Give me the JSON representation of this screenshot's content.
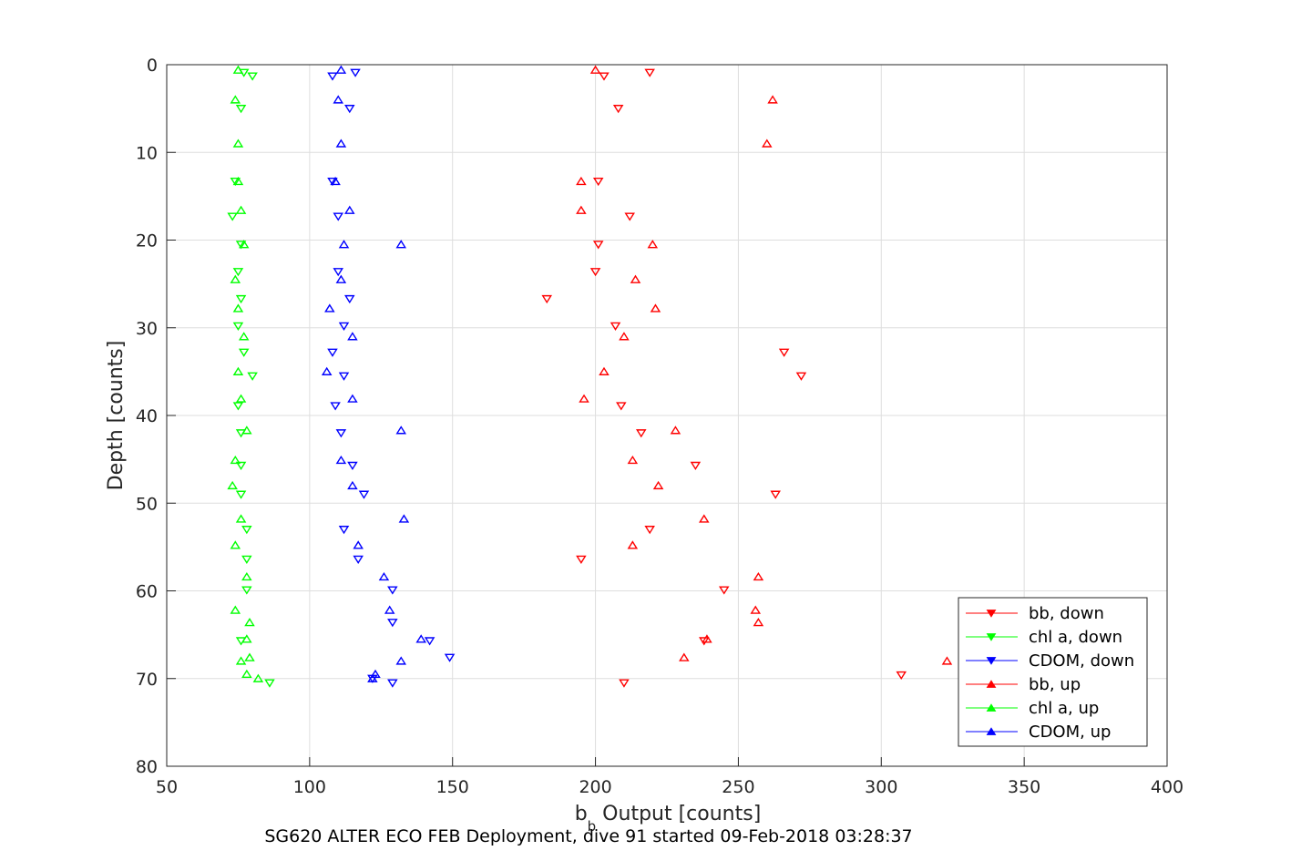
{
  "chart_data": {
    "type": "scatter",
    "caption": "SG620 ALTER ECO FEB Deployment, dive 91 started 09-Feb-2018 03:28:37",
    "xlabel_main": "b",
    "xlabel_sub": "b",
    "xlabel_rest": " Output [counts]",
    "ylabel": "Depth [counts]",
    "xlim": [
      50,
      400
    ],
    "ylim": [
      0,
      80
    ],
    "y_reversed": true,
    "grid": true,
    "legend_position": "bottom-right",
    "x_ticks": [
      "50",
      "100",
      "150",
      "200",
      "250",
      "300",
      "350",
      "400"
    ],
    "y_ticks": [
      "0",
      "10",
      "20",
      "30",
      "40",
      "50",
      "60",
      "70",
      "80"
    ],
    "series": [
      {
        "name": "bb, down",
        "color": "#ff0000",
        "marker": "triangle-down",
        "points": [
          [
            219,
            0.9
          ],
          [
            203,
            1.3
          ],
          [
            208,
            5.0
          ],
          [
            201,
            13.3
          ],
          [
            212,
            17.3
          ],
          [
            201,
            20.5
          ],
          [
            200,
            23.6
          ],
          [
            183,
            26.7
          ],
          [
            207,
            29.8
          ],
          [
            209,
            38.9
          ],
          [
            216,
            42.0
          ],
          [
            235,
            45.7
          ],
          [
            263,
            49.0
          ],
          [
            219,
            53.0
          ],
          [
            195,
            56.4
          ],
          [
            245,
            59.9
          ],
          [
            238,
            65.7
          ],
          [
            307,
            69.6
          ],
          [
            210,
            70.5
          ],
          [
            266,
            32.8
          ],
          [
            272,
            35.5
          ]
        ]
      },
      {
        "name": "chl a, down",
        "color": "#00ff00",
        "marker": "triangle-down",
        "points": [
          [
            77,
            0.9
          ],
          [
            80,
            1.3
          ],
          [
            76,
            5.0
          ],
          [
            74,
            13.3
          ],
          [
            73,
            17.3
          ],
          [
            76,
            20.5
          ],
          [
            75,
            23.6
          ],
          [
            76,
            26.7
          ],
          [
            75,
            29.8
          ],
          [
            75,
            38.9
          ],
          [
            76,
            42.0
          ],
          [
            76,
            45.7
          ],
          [
            76,
            49.0
          ],
          [
            78,
            53.0
          ],
          [
            78,
            56.4
          ],
          [
            78,
            59.9
          ],
          [
            76,
            65.7
          ],
          [
            86,
            70.5
          ],
          [
            80,
            35.5
          ],
          [
            77,
            32.8
          ]
        ]
      },
      {
        "name": "CDOM, down",
        "color": "#0000ff",
        "marker": "triangle-down",
        "points": [
          [
            108,
            1.3
          ],
          [
            116,
            0.9
          ],
          [
            114,
            5.0
          ],
          [
            108,
            13.3
          ],
          [
            110,
            17.3
          ],
          [
            110,
            23.6
          ],
          [
            114,
            26.7
          ],
          [
            112,
            29.8
          ],
          [
            108,
            32.8
          ],
          [
            112,
            35.5
          ],
          [
            109,
            38.9
          ],
          [
            111,
            42.0
          ],
          [
            115,
            45.7
          ],
          [
            119,
            49.0
          ],
          [
            112,
            53.0
          ],
          [
            117,
            56.4
          ],
          [
            129,
            59.9
          ],
          [
            129,
            63.6
          ],
          [
            142,
            65.7
          ],
          [
            149,
            67.6
          ],
          [
            122,
            70.0
          ],
          [
            129,
            70.5
          ]
        ]
      },
      {
        "name": "bb, up",
        "color": "#ff0000",
        "marker": "triangle-up",
        "points": [
          [
            200,
            0.6
          ],
          [
            262,
            4.0
          ],
          [
            260,
            9.0
          ],
          [
            195,
            13.3
          ],
          [
            195,
            16.6
          ],
          [
            220,
            20.5
          ],
          [
            214,
            24.5
          ],
          [
            221,
            27.8
          ],
          [
            210,
            31.0
          ],
          [
            203,
            35.0
          ],
          [
            196,
            38.1
          ],
          [
            228,
            41.7
          ],
          [
            213,
            45.1
          ],
          [
            222,
            48.0
          ],
          [
            238,
            51.8
          ],
          [
            213,
            54.8
          ],
          [
            257,
            58.4
          ],
          [
            256,
            62.2
          ],
          [
            257,
            63.6
          ],
          [
            239,
            65.5
          ],
          [
            231,
            67.6
          ],
          [
            323,
            68.0
          ]
        ]
      },
      {
        "name": "chl a, up",
        "color": "#00ff00",
        "marker": "triangle-up",
        "points": [
          [
            75,
            0.6
          ],
          [
            74,
            4.0
          ],
          [
            75,
            9.0
          ],
          [
            75,
            13.3
          ],
          [
            76,
            16.6
          ],
          [
            77,
            20.5
          ],
          [
            74,
            24.5
          ],
          [
            75,
            27.8
          ],
          [
            77,
            31.0
          ],
          [
            75,
            35.0
          ],
          [
            76,
            38.1
          ],
          [
            78,
            41.7
          ],
          [
            74,
            45.1
          ],
          [
            73,
            48.0
          ],
          [
            76,
            51.8
          ],
          [
            74,
            54.8
          ],
          [
            78,
            58.4
          ],
          [
            74,
            62.2
          ],
          [
            79,
            63.6
          ],
          [
            78,
            65.5
          ],
          [
            79,
            67.6
          ],
          [
            76,
            68.0
          ],
          [
            78,
            69.5
          ],
          [
            82,
            70.0
          ]
        ]
      },
      {
        "name": "CDOM, up",
        "color": "#0000ff",
        "marker": "triangle-up",
        "points": [
          [
            111,
            0.6
          ],
          [
            110,
            4.0
          ],
          [
            111,
            9.0
          ],
          [
            109,
            13.3
          ],
          [
            114,
            16.6
          ],
          [
            112,
            20.5
          ],
          [
            132,
            20.5
          ],
          [
            111,
            24.5
          ],
          [
            107,
            27.8
          ],
          [
            115,
            31.0
          ],
          [
            106,
            35.0
          ],
          [
            115,
            38.1
          ],
          [
            132,
            41.7
          ],
          [
            111,
            45.1
          ],
          [
            115,
            48.0
          ],
          [
            133,
            51.8
          ],
          [
            117,
            54.8
          ],
          [
            126,
            58.4
          ],
          [
            128,
            62.2
          ],
          [
            139,
            65.5
          ],
          [
            132,
            68.0
          ],
          [
            123,
            69.5
          ],
          [
            122,
            70.0
          ]
        ]
      }
    ]
  }
}
